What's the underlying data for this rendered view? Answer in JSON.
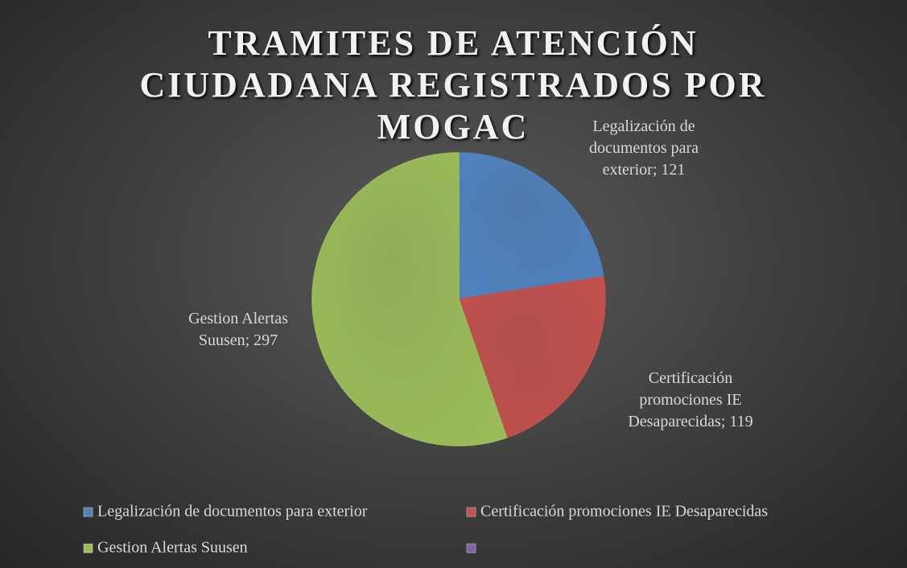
{
  "chart_data": {
    "type": "pie",
    "title": "TRAMITES DE ATENCIÓN CIUDADANA REGISTRADOS POR MOGAC",
    "categories": [
      "Legalización de documentos para exterior",
      "Certificación promociones IE Desaparecidas",
      "Gestion Alertas Suusen",
      null
    ],
    "values": [
      121,
      119,
      297,
      null
    ],
    "value_labels": [
      "Legalización de documentos para exterior; 121",
      "Certificación promociones IE Desaparecidas; 119",
      "Gestion Alertas Suusen; 297",
      null
    ],
    "colors": [
      "#4f81bd",
      "#c0504d",
      "#9bbb59",
      "#8064a2"
    ],
    "legend": "bottom"
  }
}
